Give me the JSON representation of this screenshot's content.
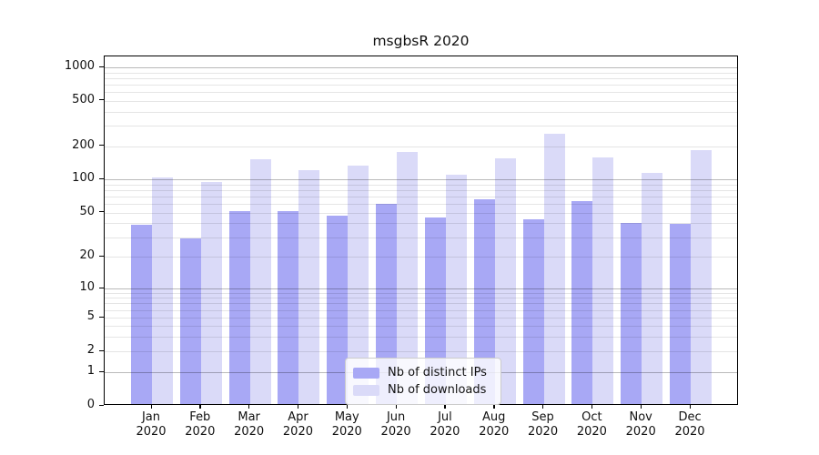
{
  "chart_data": {
    "type": "bar",
    "title": "msgbsR 2020",
    "categories": [
      "Jan",
      "Feb",
      "Mar",
      "Apr",
      "May",
      "Jun",
      "Jul",
      "Aug",
      "Sep",
      "Oct",
      "Nov",
      "Dec"
    ],
    "year": "2020",
    "series": [
      {
        "name": "Nb of distinct IPs",
        "color": "#a8a8f5",
        "values": [
          37,
          28,
          50,
          50,
          45,
          58,
          43,
          63,
          42,
          61,
          39,
          38
        ]
      },
      {
        "name": "Nb of downloads",
        "color": "#dadaf8",
        "values": [
          100,
          91,
          146,
          116,
          127,
          170,
          106,
          149,
          245,
          152,
          110,
          177
        ]
      }
    ],
    "y_ticks": [
      0,
      1,
      2,
      5,
      10,
      20,
      50,
      100,
      200,
      500,
      1000
    ],
    "ylim": [
      0,
      1000
    ],
    "scale": "pseudo-log",
    "grid": true,
    "legend_position": "lower center"
  },
  "colors": {
    "major_grid": "#b8b8b8",
    "minor_grid": "#e3e3e3",
    "axis": "#000000",
    "legend_border": "#cccccc",
    "legend_background": "rgba(255,255,255,0.8)"
  }
}
